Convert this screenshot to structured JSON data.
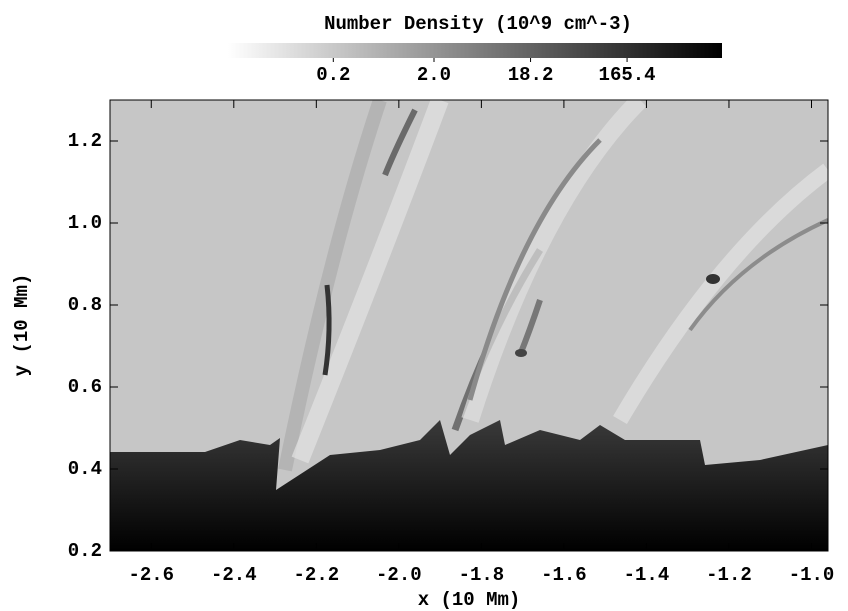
{
  "chart_data": {
    "type": "image",
    "xlabel": "x (10 Mm)",
    "ylabel": "y (10 Mm)",
    "xlim": [
      -2.7,
      -0.96
    ],
    "ylim": [
      0.2,
      1.3
    ],
    "xticks": [
      -2.6,
      -2.4,
      -2.2,
      {
        "value": -2.0,
        "label": "-2.0"
      },
      -1.8,
      -1.6,
      -1.4,
      -1.2,
      {
        "value": -1.0,
        "label": "-1.0"
      }
    ],
    "yticks": [
      0.2,
      0.4,
      0.6,
      0.8,
      {
        "value": 1.0,
        "label": "1.0"
      },
      1.2
    ],
    "colorbar": {
      "label": "Number Density (10^9 cm^-3)",
      "log": true,
      "lim": [
        0.018,
        1450
      ],
      "ticks": [
        0.2,
        {
          "value": 2.0,
          "label": "2.0"
        },
        18.2,
        165.4
      ]
    }
  }
}
